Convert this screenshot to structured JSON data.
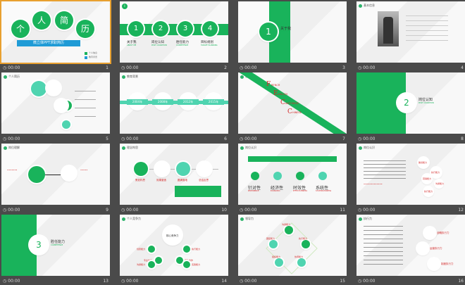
{
  "colors": {
    "accent": "#19b35b",
    "teal": "#4fd4b0",
    "red": "#d32a2a",
    "bg": "#4a4a4a"
  },
  "time": "00:00",
  "slides": [
    {
      "num": "1",
      "title_chars": [
        "个",
        "人",
        "简",
        "历"
      ],
      "subtitle": "微立体PPT求职简历",
      "legend": [
        "个人信息",
        "教育背景"
      ]
    },
    {
      "num": "2",
      "icon": "info-icon",
      "items": [
        {
          "n": "1",
          "label": "关于我",
          "sub": "ABOUT ME"
        },
        {
          "n": "2",
          "label": "岗位认知",
          "sub": "POST COGNITION"
        },
        {
          "n": "3",
          "label": "胜任能力",
          "sub": "COMPETENCE"
        },
        {
          "n": "4",
          "label": "目标规划",
          "sub": "TARGET PLANNING"
        }
      ]
    },
    {
      "num": "3",
      "n": "1",
      "label": "关于我",
      "sub": "ABOUT ME"
    },
    {
      "num": "4",
      "header": "基本信息"
    },
    {
      "num": "5",
      "header": "个人简历"
    },
    {
      "num": "6",
      "header": "教育背景",
      "years": [
        "2004年",
        "2008年",
        "2012年",
        "2015年"
      ]
    },
    {
      "num": "7",
      "header": "语言能力",
      "letters": [
        "F",
        "E",
        "C",
        "C"
      ],
      "words": [
        "RENCH",
        "NGLISH",
        "ANTONESE",
        "HINESE"
      ]
    },
    {
      "num": "8",
      "n": "2",
      "label": "岗位认知",
      "sub": "POST COGNITION"
    },
    {
      "num": "9",
      "header": "岗位理解"
    },
    {
      "num": "10",
      "header": "理念构思",
      "labels": [
        "策划构思",
        "效果营造",
        "圆满落地",
        "总结反思"
      ]
    },
    {
      "num": "11",
      "header": "岗位认识",
      "labels": [
        "针对性",
        "经济性",
        "时效性",
        "系统性"
      ],
      "subs": [
        "PERTINENCE",
        "ECONOMIC",
        "EFFECTIVENESS",
        "SYSTEMATICNESS"
      ]
    },
    {
      "num": "12",
      "header": "岗位认识",
      "labels": [
        "策划能力",
        "执行能力",
        "营销能力",
        "沟通能力",
        "执行能力"
      ]
    },
    {
      "num": "13",
      "n": "3",
      "label": "胜任能力",
      "sub": "COMPETENCE"
    },
    {
      "num": "14",
      "header": "个人竞争力",
      "center": "核心竞争力",
      "labels": [
        "创意能力",
        "执行能力",
        "专业技能",
        "团队合作",
        "沟通能力",
        "实践能力"
      ]
    },
    {
      "num": "15",
      "header": "领导力",
      "labels": [
        "沟通能力",
        "团结能力",
        "执行能力",
        "组织能力",
        "协调能力"
      ]
    },
    {
      "num": "16",
      "header": "执行力",
      "labels": [
        "战略执行力",
        "运营执行力",
        "制度执行力"
      ]
    }
  ]
}
